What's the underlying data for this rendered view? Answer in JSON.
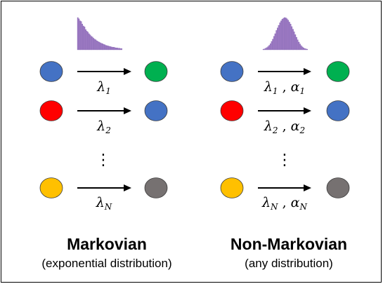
{
  "colors": {
    "blue": "#4472C4",
    "red": "#FF0000",
    "green": "#00B050",
    "yellow": "#FFC000",
    "gray": "#767171",
    "histogram": "#9E7BC4",
    "histogram_edge": "#7F5FAF",
    "border": "#000000"
  },
  "panels": [
    {
      "id": "markovian",
      "title": "Markovian",
      "caption": "(exponential distribution)",
      "histogram": {
        "shape": "exponential-decay",
        "values": [
          1.0,
          0.96,
          0.9,
          0.88,
          0.8,
          0.74,
          0.71,
          0.63,
          0.58,
          0.55,
          0.5,
          0.46,
          0.42,
          0.4,
          0.36,
          0.33,
          0.31,
          0.28,
          0.26,
          0.24,
          0.22,
          0.2,
          0.19,
          0.17,
          0.16,
          0.14,
          0.13,
          0.12,
          0.11,
          0.1,
          0.09,
          0.08,
          0.08,
          0.07,
          0.06,
          0.06,
          0.05,
          0.05,
          0.04,
          0.04
        ]
      },
      "rows": [
        {
          "from": "blue",
          "to": "green",
          "label": {
            "symbol": "λ",
            "sub": "1"
          }
        },
        {
          "from": "red",
          "to": "blue",
          "label": {
            "symbol": "λ",
            "sub": "2"
          }
        },
        {
          "from": "yellow",
          "to": "gray",
          "label": {
            "symbol": "λ",
            "sub": "N"
          }
        }
      ],
      "ellipsis": "⋮"
    },
    {
      "id": "non-markovian",
      "title": "Non-Markovian",
      "caption": "(any distribution)",
      "histogram": {
        "shape": "bell",
        "values": [
          0.02,
          0.03,
          0.05,
          0.07,
          0.1,
          0.14,
          0.19,
          0.26,
          0.33,
          0.42,
          0.5,
          0.6,
          0.68,
          0.76,
          0.84,
          0.9,
          0.95,
          0.98,
          1.0,
          0.99,
          0.96,
          0.92,
          0.86,
          0.8,
          0.72,
          0.64,
          0.56,
          0.47,
          0.39,
          0.31,
          0.24,
          0.18,
          0.13,
          0.09,
          0.06,
          0.04,
          0.03,
          0.02
        ]
      },
      "rows": [
        {
          "from": "blue",
          "to": "green",
          "label": {
            "symbol": "λ",
            "sub": "1",
            "symbol2": "α",
            "sub2": "1"
          }
        },
        {
          "from": "red",
          "to": "blue",
          "label": {
            "symbol": "λ",
            "sub": "2",
            "symbol2": "α",
            "sub2": "2"
          }
        },
        {
          "from": "yellow",
          "to": "gray",
          "label": {
            "symbol": "λ",
            "sub": "N",
            "symbol2": "α",
            "sub2": "N"
          }
        }
      ],
      "ellipsis": "⋮"
    }
  ]
}
